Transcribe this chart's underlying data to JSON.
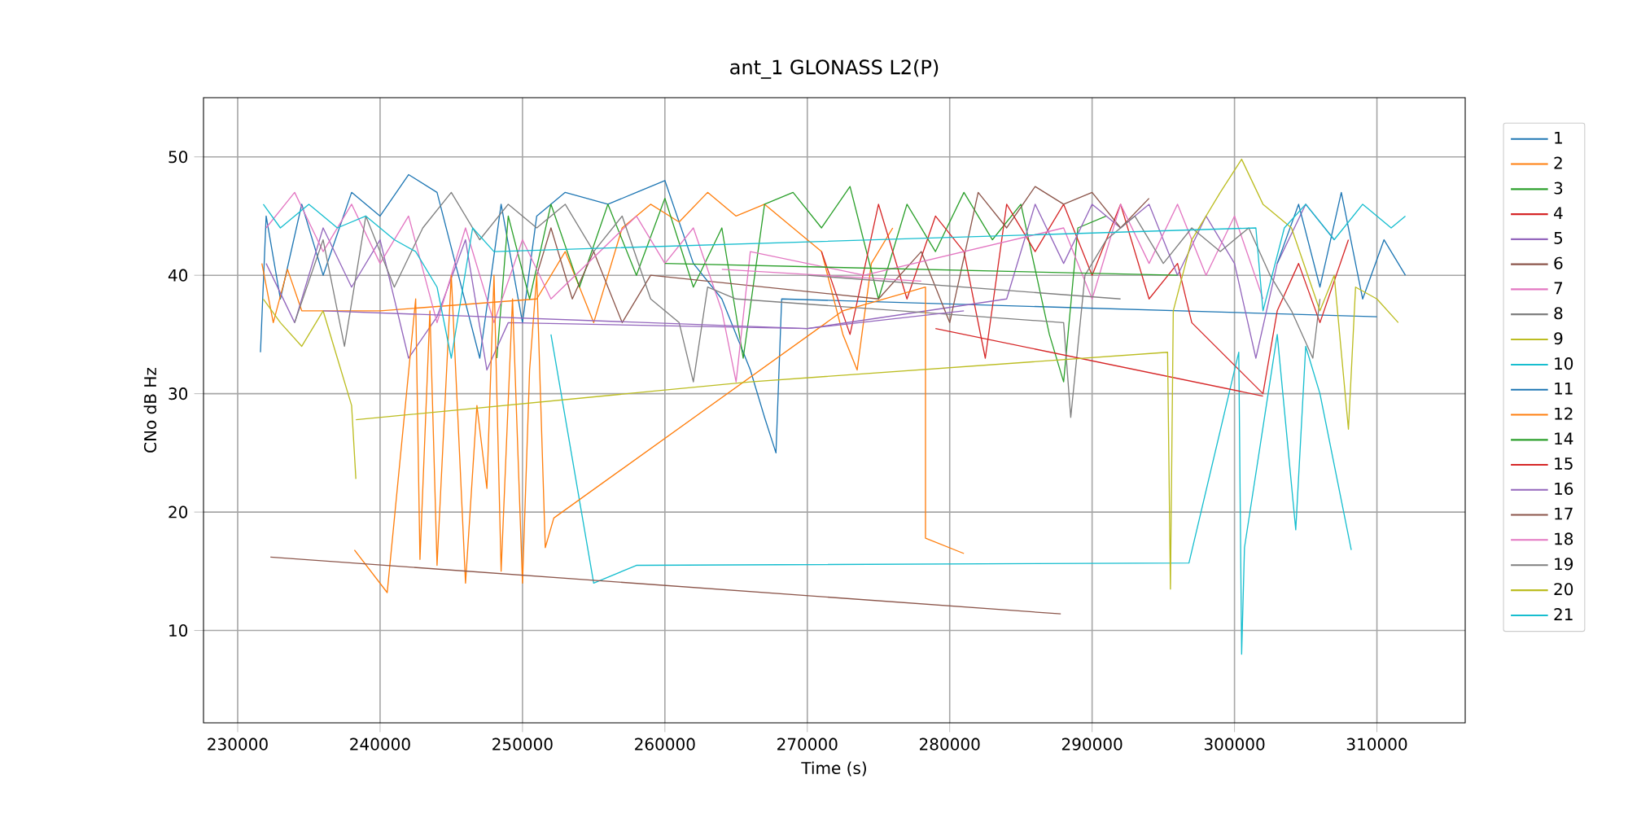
{
  "chart_data": {
    "type": "line",
    "title": "ant_1 GLONASS L2(P)",
    "xlabel": "Time (s)",
    "ylabel": "CNo dB Hz",
    "xlim": [
      227600,
      316200
    ],
    "ylim": [
      2.2,
      55
    ],
    "xticks": [
      230000,
      240000,
      250000,
      260000,
      270000,
      280000,
      290000,
      300000,
      310000
    ],
    "yticks": [
      10,
      20,
      30,
      40,
      50
    ],
    "grid": true,
    "legend": "right",
    "line_style": "solid",
    "series": [
      {
        "name": "1",
        "color": "#1f77b4",
        "x": [
          231600,
          232000,
          233000,
          234500,
          236000,
          238000,
          240000,
          242000,
          244000,
          245500,
          247000,
          248500,
          250000,
          251000,
          253000,
          256000,
          258000,
          260000,
          262000,
          264000,
          266000,
          267000,
          267800,
          268200,
          310000
        ],
        "values": [
          33.5,
          45,
          38,
          46,
          40,
          47,
          45,
          48.5,
          47,
          40,
          33,
          46,
          36,
          45,
          47,
          46,
          47,
          48,
          41,
          38,
          32,
          28,
          25,
          38,
          36.5
        ]
      },
      {
        "name": "2",
        "color": "#ff7f0e",
        "x": [
          231700,
          232500,
          233500,
          234500,
          240000,
          251000,
          253000,
          255000,
          257000,
          259000,
          261000,
          263000,
          265000,
          267000,
          269000,
          271000,
          272500,
          273500,
          274500,
          276000
        ],
        "values": [
          41,
          36,
          40.5,
          37,
          37,
          38,
          42,
          36,
          44,
          46,
          44.5,
          47,
          45,
          46,
          44,
          42,
          35,
          32,
          41,
          44
        ]
      },
      {
        "name": "3",
        "color": "#2ca02c",
        "x": [
          248200,
          249000,
          250500,
          252000,
          254000,
          256000,
          258000,
          260000,
          262000,
          264000,
          265500,
          267000,
          269000,
          271000,
          273000,
          275000,
          277000,
          279000,
          281000,
          283000,
          285000,
          287000,
          288000,
          289000,
          291000
        ],
        "values": [
          33,
          45,
          38,
          46,
          39,
          46,
          40,
          46.5,
          39,
          44,
          33,
          46,
          47,
          44,
          47.5,
          38,
          46,
          42,
          47,
          43,
          46,
          35,
          31,
          44,
          45
        ]
      },
      {
        "name": "4",
        "color": "#d62728",
        "x": [
          271000,
          273000,
          275000,
          277000,
          279000,
          281000,
          282500,
          284000,
          286000,
          288000,
          290000,
          292000,
          294000,
          296000,
          297000,
          302000,
          303000,
          304500,
          306000,
          308000
        ],
        "values": [
          42,
          35,
          46,
          38,
          45,
          42,
          33,
          46,
          42,
          46,
          40,
          46,
          38,
          41,
          36,
          30,
          37,
          41,
          36,
          43
        ]
      },
      {
        "name": "5",
        "color": "#9467bd",
        "x": [
          232000,
          234000,
          236000,
          238000,
          240000,
          242000,
          244000,
          246000,
          247500,
          249000,
          270000,
          284000,
          286000,
          288000,
          290000,
          292000,
          294000,
          296000,
          298000,
          300000,
          301500,
          303000,
          305000,
          307000
        ],
        "values": [
          41,
          36,
          44,
          39,
          43,
          33,
          36.5,
          43,
          32,
          36,
          35.5,
          38,
          46,
          41,
          46,
          44,
          46,
          40,
          45,
          41,
          33,
          41,
          46,
          43
        ]
      },
      {
        "name": "6",
        "color": "#8c564b",
        "x": [
          251000,
          252000,
          253500,
          255000,
          257000,
          259000,
          275000,
          278000,
          280000,
          282000,
          284000,
          286000,
          288000,
          290000,
          292000,
          294000
        ],
        "values": [
          40,
          44,
          38,
          42,
          36,
          40,
          38,
          42,
          36,
          47,
          44,
          47.5,
          46,
          47,
          44,
          46.5
        ]
      },
      {
        "name": "7",
        "color": "#e377c2",
        "x": [
          232000,
          234000,
          236000,
          238000,
          240000,
          242000,
          244000,
          246000,
          248000,
          250000,
          252000,
          258000,
          260000,
          262000,
          264000,
          265000,
          266000,
          274000,
          288000,
          290000,
          292000,
          294000,
          296000,
          298000,
          300000,
          302000
        ],
        "values": [
          44,
          47,
          42,
          46,
          41,
          45,
          36,
          44,
          36,
          43,
          38,
          45,
          41,
          44,
          37,
          31,
          42,
          40,
          44,
          38,
          46,
          41,
          46,
          40,
          45,
          38
        ]
      },
      {
        "name": "8",
        "color": "#7f7f7f",
        "x": [
          234000,
          236000,
          237500,
          239000,
          241000,
          243000,
          245000,
          247000,
          249000,
          251000,
          253000,
          255000,
          257000,
          259000,
          261000,
          262000,
          263000,
          265000,
          288000,
          288500,
          289500,
          291000,
          293000,
          295000,
          297000,
          299000,
          301000,
          302500,
          304000,
          305500,
          306000
        ],
        "values": [
          36,
          43,
          34,
          45,
          39,
          44,
          47,
          43,
          46,
          44,
          46,
          42,
          45,
          38,
          36,
          31,
          39,
          38,
          36,
          28,
          40,
          43,
          45,
          41,
          44,
          42,
          44,
          40,
          37,
          33,
          38
        ]
      },
      {
        "name": "9",
        "color": "#bcbd22",
        "x": [
          231800,
          233000,
          234500,
          236000,
          237000,
          238000,
          238300
        ],
        "values": [
          38,
          36,
          34,
          37,
          33,
          29,
          22.8
        ]
      },
      {
        "name": "10",
        "color": "#17becf",
        "x": [
          252000,
          255000,
          258000,
          296800,
          300300,
          300500,
          300700,
          303000,
          304300,
          305000,
          306000,
          308200
        ],
        "values": [
          35,
          14,
          15.5,
          15.7,
          33.5,
          8,
          17,
          35,
          18.5,
          34,
          30,
          16.8
        ]
      },
      {
        "name": "11",
        "color": "#1f77b4",
        "x": [
          303000,
          304500,
          306000,
          307500,
          309000,
          310500,
          312000
        ],
        "values": [
          41,
          46,
          39,
          47,
          38,
          43,
          40
        ]
      },
      {
        "name": "12",
        "color": "#ff7f0e",
        "x": [
          238200,
          240500,
          242500,
          242800,
          243500,
          244000,
          245000,
          246000,
          246800,
          247500,
          248000,
          248500,
          249300,
          250000,
          250500,
          251000,
          251600,
          252200,
          272500,
          278300,
          278300,
          281000
        ],
        "values": [
          16.8,
          13.2,
          38,
          16,
          37,
          15.5,
          40,
          14,
          29,
          22,
          40,
          15,
          38,
          14,
          32,
          40,
          17,
          19.5,
          37,
          39,
          17.8,
          16.5
        ]
      },
      {
        "name": "14",
        "color": "#2ca02c",
        "x": [
          260000,
          296000
        ],
        "values": [
          41,
          40
        ]
      },
      {
        "name": "15",
        "color": "#d62728",
        "x": [
          279000,
          302000
        ],
        "values": [
          35.5,
          29.8
        ]
      },
      {
        "name": "16",
        "color": "#9467bd",
        "x": [
          236000,
          270000,
          281000
        ],
        "values": [
          37,
          35.5,
          37
        ]
      },
      {
        "name": "17",
        "color": "#8c564b",
        "x": [
          232300,
          287800
        ],
        "values": [
          16.2,
          11.4
        ]
      },
      {
        "name": "18",
        "color": "#e377c2",
        "x": [
          264000,
          278000
        ],
        "values": [
          40.5,
          39.5
        ]
      },
      {
        "name": "19",
        "color": "#7f7f7f",
        "x": [
          270000,
          292000
        ],
        "values": [
          40,
          38
        ]
      },
      {
        "name": "20",
        "color": "#bcbd22",
        "x": [
          238300,
          266000,
          295300,
          295500,
          295700,
          297000,
          299000,
          300500,
          302000,
          304000,
          306000,
          307000,
          308000,
          308500,
          310000,
          311500
        ],
        "values": [
          27.8,
          31,
          33.5,
          13.5,
          37,
          43,
          47,
          49.8,
          46,
          44,
          37,
          40,
          27,
          39,
          38,
          36
        ]
      },
      {
        "name": "21",
        "color": "#17becf",
        "x": [
          231800,
          233000,
          235000,
          237000,
          239000,
          241000,
          242500,
          244000,
          245000,
          246500,
          248000,
          301500,
          302000,
          303500,
          305000,
          307000,
          309000,
          311000,
          312000
        ],
        "values": [
          46,
          44,
          46,
          44,
          45,
          43,
          42,
          39,
          33,
          44,
          42,
          44,
          37,
          44,
          46,
          43,
          46,
          44,
          45
        ]
      }
    ]
  }
}
